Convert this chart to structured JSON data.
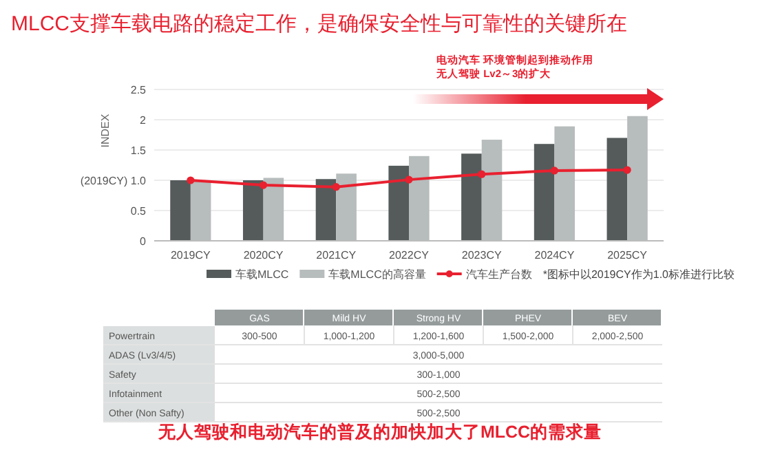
{
  "chart_data": [
    {
      "type": "bar",
      "title": "MLCC支撑车载电路的稳定工作，是确保安全性与可靠性的关键所在",
      "ylabel": "INDEX",
      "categories": [
        "2019CY",
        "2020CY",
        "2021CY",
        "2022CY",
        "2023CY",
        "2024CY",
        "2025CY"
      ],
      "series": [
        {
          "name": "车载MLCC",
          "color": "#555b5b",
          "values": [
            1.0,
            1.0,
            1.02,
            1.24,
            1.44,
            1.6,
            1.7
          ]
        },
        {
          "name": "车载MLCC的高容量",
          "color": "#b7bcbc",
          "values": [
            1.0,
            1.04,
            1.11,
            1.4,
            1.67,
            1.89,
            2.06
          ]
        },
        {
          "name": "汽车生产台数",
          "type": "line",
          "color": "#e8202f",
          "values": [
            1.0,
            0.92,
            0.89,
            1.01,
            1.1,
            1.16,
            1.17
          ]
        }
      ],
      "ylim": [
        0,
        2.5
      ],
      "yticks": [
        0,
        0.5,
        {
          "value": 1,
          "label": "(2019CY) 1.0"
        },
        1.5,
        2,
        2.5
      ],
      "grid": "y",
      "legend": "bottom",
      "marker": "circle",
      "annotations": [
        "电动汽车 环境管制起到推动作用",
        "无人驾驶 Lv2～3的扩大",
        "*图标中以2019CY作为1.0标准进行比较"
      ]
    },
    {
      "type": "heatmap",
      "categories": [
        "GAS",
        "Mild HV",
        "Strong HV",
        "PHEV",
        "BEV"
      ],
      "y_categories": [
        "Powertrain",
        "ADAS (Lv3/4/5)",
        "Safety",
        "Infotainment",
        "Other (Non Safty)"
      ],
      "cells": [
        [
          null,
          null,
          null,
          null,
          null
        ],
        [
          null,
          null,
          null,
          null,
          null
        ],
        [
          null,
          null,
          null,
          null,
          null
        ],
        [
          null,
          null,
          null,
          null,
          null
        ],
        [
          null,
          null,
          null,
          null,
          null
        ]
      ],
      "cell_labels": [
        [
          "300-500",
          "1,000-1,200",
          "1,200-1,600",
          "1,500-2,000",
          "2,000-2,500"
        ],
        [
          null,
          null,
          "3,000-5,000",
          null,
          null
        ],
        [
          null,
          null,
          "300-1,000",
          null,
          null
        ],
        [
          null,
          null,
          "500-2,500",
          null,
          null
        ],
        [
          null,
          null,
          "500-2,500",
          null,
          null
        ]
      ],
      "annotations": [
        "无人驾驶和电动汽车的普及的加快加大了MLCC的需求量"
      ]
    }
  ]
}
